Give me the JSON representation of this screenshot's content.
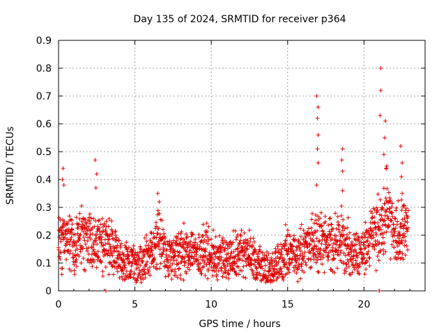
{
  "chart_data": {
    "type": "scatter",
    "title": "Day 135 of 2024, SRMTID for receiver p364",
    "xlabel": "GPS time / hours",
    "ylabel": "SRMTID / TECUs",
    "xlim": [
      0,
      24
    ],
    "ylim": [
      0,
      0.9
    ],
    "x_ticks": [
      0,
      5,
      10,
      15,
      20
    ],
    "x_tick_labels": [
      "0",
      "5",
      "10",
      "15",
      "20"
    ],
    "y_ticks": [
      0,
      0.1,
      0.2,
      0.3,
      0.4,
      0.5,
      0.6,
      0.7,
      0.8,
      0.9
    ],
    "y_tick_labels": [
      "0",
      "0.1",
      "0.2",
      "0.3",
      "0.4",
      "0.5",
      "0.6",
      "0.7",
      "0.8",
      "0.9"
    ],
    "grid": true,
    "marker": "+",
    "marker_color": "#e00000",
    "envelope_note": "Dense scatter: data summarized by hourly base level, spread, and notable spikes",
    "baseline": [
      {
        "x": 0.0,
        "y": 0.17
      },
      {
        "x": 0.5,
        "y": 0.2
      },
      {
        "x": 1.0,
        "y": 0.16
      },
      {
        "x": 1.5,
        "y": 0.2
      },
      {
        "x": 2.0,
        "y": 0.17
      },
      {
        "x": 2.5,
        "y": 0.18
      },
      {
        "x": 3.0,
        "y": 0.16
      },
      {
        "x": 3.5,
        "y": 0.17
      },
      {
        "x": 4.0,
        "y": 0.12
      },
      {
        "x": 4.5,
        "y": 0.1
      },
      {
        "x": 5.0,
        "y": 0.1
      },
      {
        "x": 5.5,
        "y": 0.1
      },
      {
        "x": 6.0,
        "y": 0.12
      },
      {
        "x": 6.5,
        "y": 0.2
      },
      {
        "x": 7.0,
        "y": 0.13
      },
      {
        "x": 7.5,
        "y": 0.11
      },
      {
        "x": 8.0,
        "y": 0.13
      },
      {
        "x": 8.5,
        "y": 0.15
      },
      {
        "x": 9.0,
        "y": 0.13
      },
      {
        "x": 9.5,
        "y": 0.15
      },
      {
        "x": 10.0,
        "y": 0.14
      },
      {
        "x": 10.5,
        "y": 0.12
      },
      {
        "x": 11.0,
        "y": 0.12
      },
      {
        "x": 11.5,
        "y": 0.14
      },
      {
        "x": 12.0,
        "y": 0.13
      },
      {
        "x": 12.5,
        "y": 0.14
      },
      {
        "x": 13.0,
        "y": 0.1
      },
      {
        "x": 13.5,
        "y": 0.07
      },
      {
        "x": 14.0,
        "y": 0.08
      },
      {
        "x": 14.5,
        "y": 0.1
      },
      {
        "x": 15.0,
        "y": 0.15
      },
      {
        "x": 15.5,
        "y": 0.11
      },
      {
        "x": 16.0,
        "y": 0.15
      },
      {
        "x": 16.5,
        "y": 0.18
      },
      {
        "x": 17.0,
        "y": 0.18
      },
      {
        "x": 17.5,
        "y": 0.17
      },
      {
        "x": 18.0,
        "y": 0.17
      },
      {
        "x": 18.5,
        "y": 0.19
      },
      {
        "x": 19.0,
        "y": 0.15
      },
      {
        "x": 19.5,
        "y": 0.14
      },
      {
        "x": 20.0,
        "y": 0.14
      },
      {
        "x": 20.5,
        "y": 0.2
      },
      {
        "x": 21.0,
        "y": 0.22
      },
      {
        "x": 21.5,
        "y": 0.3
      },
      {
        "x": 22.0,
        "y": 0.18
      },
      {
        "x": 22.5,
        "y": 0.22
      },
      {
        "x": 22.9,
        "y": 0.2
      }
    ],
    "spikes": [
      {
        "x": 0.3,
        "y": 0.44
      },
      {
        "x": 0.25,
        "y": 0.4
      },
      {
        "x": 0.35,
        "y": 0.38
      },
      {
        "x": 2.4,
        "y": 0.47
      },
      {
        "x": 2.5,
        "y": 0.42
      },
      {
        "x": 2.45,
        "y": 0.37
      },
      {
        "x": 3.1,
        "y": 0.0
      },
      {
        "x": 6.5,
        "y": 0.35
      },
      {
        "x": 6.6,
        "y": 0.32
      },
      {
        "x": 16.9,
        "y": 0.7
      },
      {
        "x": 17.0,
        "y": 0.66
      },
      {
        "x": 16.95,
        "y": 0.62
      },
      {
        "x": 17.0,
        "y": 0.56
      },
      {
        "x": 16.95,
        "y": 0.51
      },
      {
        "x": 17.0,
        "y": 0.46
      },
      {
        "x": 16.9,
        "y": 0.38
      },
      {
        "x": 18.6,
        "y": 0.51
      },
      {
        "x": 18.55,
        "y": 0.47
      },
      {
        "x": 18.6,
        "y": 0.43
      },
      {
        "x": 18.6,
        "y": 0.36
      },
      {
        "x": 21.1,
        "y": 0.8
      },
      {
        "x": 21.1,
        "y": 0.72
      },
      {
        "x": 21.05,
        "y": 0.63
      },
      {
        "x": 21.0,
        "y": 0.0
      },
      {
        "x": 21.4,
        "y": 0.61
      },
      {
        "x": 21.35,
        "y": 0.55
      },
      {
        "x": 21.3,
        "y": 0.49
      },
      {
        "x": 21.45,
        "y": 0.44
      },
      {
        "x": 22.4,
        "y": 0.52
      },
      {
        "x": 22.5,
        "y": 0.46
      },
      {
        "x": 22.45,
        "y": 0.41
      },
      {
        "x": 22.5,
        "y": 0.35
      }
    ]
  }
}
